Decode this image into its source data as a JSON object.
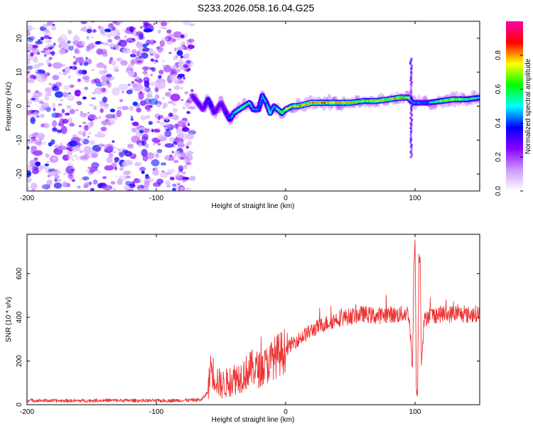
{
  "figure": {
    "title": "S233.2026.058.16.04.G25"
  },
  "chart_data": [
    {
      "type": "heatmap",
      "title": "S233.2026.058.16.04.G25",
      "xlabel": "Height of straight line (km)",
      "ylabel": "Frequency (Hz)",
      "xlim": [
        -200,
        150
      ],
      "ylim": [
        -25,
        25
      ],
      "x_ticks": [
        -200,
        -100,
        0,
        100
      ],
      "y_ticks": [
        -20,
        -10,
        0,
        10,
        20
      ],
      "colorbar": {
        "label": "Normalized spectral amplitude",
        "range": [
          0.0,
          1.0
        ],
        "ticks": [
          0.0,
          0.2,
          0.4,
          0.6,
          0.8
        ],
        "tick_labels": [
          "0.0",
          "0.2",
          "0.4",
          "0.6",
          "0.8"
        ],
        "colormap": [
          "#ffffff",
          "#cc99ff",
          "#8800ff",
          "#0000ff",
          "#00ffff",
          "#00ff00",
          "#ffff00",
          "#ff0000",
          "#ff00aa"
        ]
      },
      "noise_region_x": [
        -200,
        -72
      ],
      "signal_track": {
        "x": [
          -72,
          -68,
          -64,
          -60,
          -55,
          -50,
          -46,
          -43,
          -40,
          -36,
          -32,
          -28,
          -25,
          -21,
          -18,
          -15,
          -12,
          -9,
          -6,
          -3,
          0,
          5,
          10,
          20,
          30,
          40,
          50,
          60,
          70,
          80,
          88,
          95,
          98,
          102,
          110,
          120,
          130,
          140,
          150
        ],
        "freq": [
          3,
          1,
          -1,
          2,
          -2,
          1,
          -2,
          -4,
          -2,
          -1,
          0,
          1,
          -1,
          -1,
          3,
          1,
          -2,
          0,
          -1,
          -2,
          -1,
          0,
          0,
          1,
          1,
          1,
          1,
          1.5,
          1.5,
          2,
          2.5,
          2.5,
          1,
          1,
          1,
          1.5,
          2,
          2,
          2.5
        ],
        "amplitude": [
          0.3,
          0.35,
          0.3,
          0.4,
          0.35,
          0.3,
          0.4,
          0.45,
          0.5,
          0.6,
          0.65,
          0.55,
          0.5,
          0.45,
          0.55,
          0.5,
          0.6,
          0.45,
          0.6,
          0.65,
          0.7,
          0.75,
          0.8,
          0.85,
          0.82,
          0.8,
          0.78,
          0.7,
          0.75,
          0.78,
          0.8,
          0.75,
          0.5,
          0.45,
          0.45,
          0.7,
          0.8,
          0.6,
          0.55
        ]
      },
      "spike_x": 97
    },
    {
      "type": "line",
      "xlabel": "Height of straight line (km)",
      "ylabel": "SNR (10 * v/v)",
      "xlim": [
        -200,
        150
      ],
      "ylim": [
        0,
        780
      ],
      "x_ticks": [
        -200,
        -100,
        0,
        100
      ],
      "y_ticks": [
        0,
        200,
        400,
        600
      ],
      "color": "#ee3333",
      "series": [
        {
          "name": "SNR",
          "x": [
            -200,
            -180,
            -160,
            -140,
            -120,
            -100,
            -80,
            -65,
            -60,
            -58,
            -55,
            -50,
            -45,
            -40,
            -35,
            -30,
            -25,
            -20,
            -15,
            -10,
            -5,
            0,
            5,
            10,
            15,
            20,
            25,
            30,
            35,
            40,
            45,
            50,
            55,
            60,
            65,
            70,
            75,
            80,
            85,
            90,
            95,
            97,
            98,
            99,
            100,
            101,
            102,
            103,
            104,
            105,
            107,
            110,
            115,
            120,
            125,
            130,
            135,
            140,
            145,
            150
          ],
          "y": [
            20,
            18,
            18,
            20,
            19,
            18,
            20,
            22,
            60,
            180,
            130,
            90,
            100,
            120,
            130,
            150,
            170,
            160,
            180,
            210,
            230,
            250,
            280,
            300,
            320,
            340,
            355,
            370,
            380,
            395,
            400,
            405,
            410,
            415,
            410,
            405,
            410,
            415,
            410,
            415,
            420,
            280,
            150,
            600,
            760,
            80,
            60,
            700,
            650,
            200,
            380,
            410,
            410,
            415,
            410,
            420,
            415,
            410,
            415,
            420
          ]
        }
      ]
    }
  ]
}
